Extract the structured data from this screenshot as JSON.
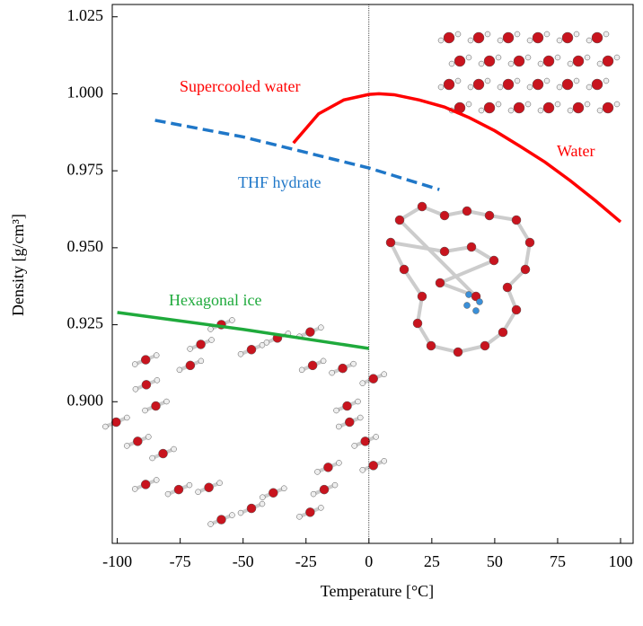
{
  "chart_data": {
    "type": "line",
    "x_label": "Temperature [°C]",
    "y_label": "Density  [g/cm³]",
    "xlim": [
      -102,
      105
    ],
    "ylim": [
      0.854,
      1.029
    ],
    "xticks": [
      -100,
      -75,
      -50,
      -25,
      0,
      25,
      50,
      75,
      100
    ],
    "yticks": [
      {
        "value": 0.9,
        "label": "0.900"
      },
      0.925,
      {
        "value": 0.95,
        "label": "0.950"
      },
      0.975,
      {
        "value": 1.0,
        "label": "1.000"
      },
      1.025
    ],
    "vline": 0,
    "series": [
      {
        "name": "Supercooled water",
        "color": "#ff0000",
        "dashed": false,
        "x": [
          -30,
          -20,
          -10,
          0
        ],
        "values": [
          0.984,
          0.9935,
          0.998,
          0.9998
        ]
      },
      {
        "name": "Water",
        "color": "#ff0000",
        "dashed": false,
        "x": [
          0,
          4,
          10,
          20,
          30,
          40,
          50,
          60,
          70,
          80,
          90,
          100
        ],
        "values": [
          0.9998,
          1.0,
          0.9997,
          0.998,
          0.9957,
          0.9922,
          0.988,
          0.983,
          0.9778,
          0.9718,
          0.9653,
          0.9584
        ]
      },
      {
        "name": "THF hydrate",
        "color": "#1f77c8",
        "dashed": true,
        "x": [
          -85,
          -50,
          0,
          28
        ],
        "values": [
          0.9914,
          0.986,
          0.9759,
          0.9689
        ]
      },
      {
        "name": "Hexagonal ice",
        "color": "#1faa3c",
        "dashed": false,
        "x": [
          -100,
          -50,
          0
        ],
        "values": [
          0.929,
          0.9235,
          0.9173
        ]
      }
    ]
  }
}
